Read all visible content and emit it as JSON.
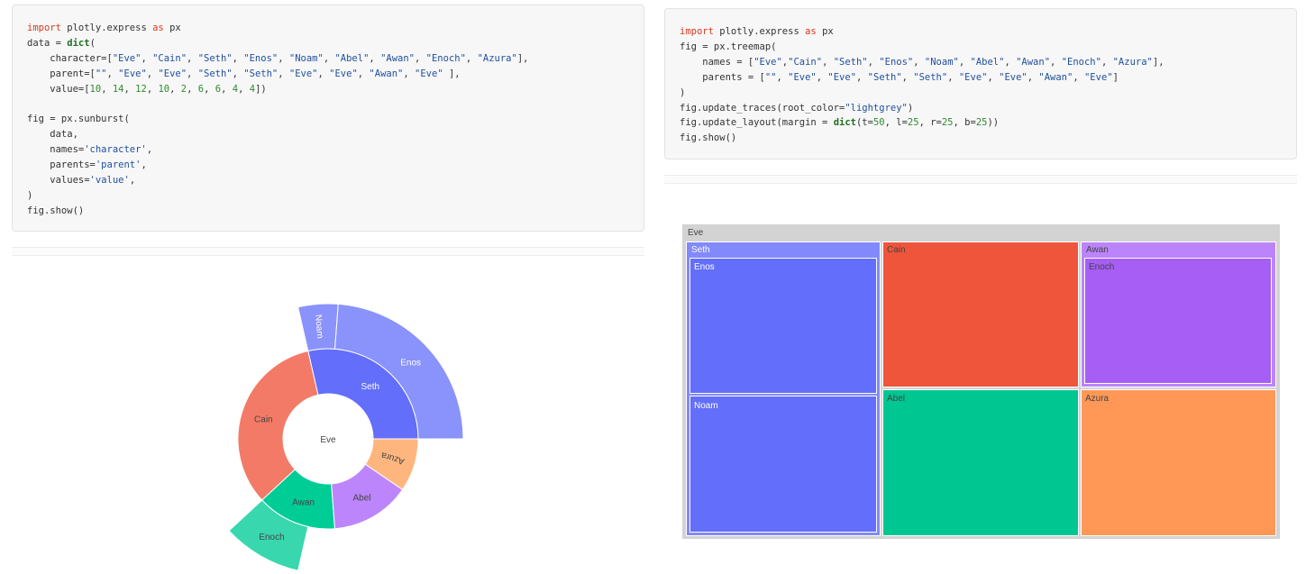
{
  "left_cell": {
    "lines": [
      [
        [
          "kw",
          "import"
        ],
        [
          "t",
          " plotly.express "
        ],
        [
          "kw",
          "as"
        ],
        [
          "t",
          " px"
        ]
      ],
      [
        [
          "t",
          "data = "
        ],
        [
          "fn",
          "dict"
        ],
        [
          "t",
          "("
        ]
      ],
      [
        [
          "t",
          "    character=["
        ],
        [
          "st",
          "\"Eve\""
        ],
        [
          "t",
          ", "
        ],
        [
          "st",
          "\"Cain\""
        ],
        [
          "t",
          ", "
        ],
        [
          "st",
          "\"Seth\""
        ],
        [
          "t",
          ", "
        ],
        [
          "st",
          "\"Enos\""
        ],
        [
          "t",
          ", "
        ],
        [
          "st",
          "\"Noam\""
        ],
        [
          "t",
          ", "
        ],
        [
          "st",
          "\"Abel\""
        ],
        [
          "t",
          ", "
        ],
        [
          "st",
          "\"Awan\""
        ],
        [
          "t",
          ", "
        ],
        [
          "st",
          "\"Enoch\""
        ],
        [
          "t",
          ", "
        ],
        [
          "st",
          "\"Azura\""
        ],
        [
          "t",
          "],"
        ]
      ],
      [
        [
          "t",
          "    parent=["
        ],
        [
          "st",
          "\"\""
        ],
        [
          "t",
          ", "
        ],
        [
          "st",
          "\"Eve\""
        ],
        [
          "t",
          ", "
        ],
        [
          "st",
          "\"Eve\""
        ],
        [
          "t",
          ", "
        ],
        [
          "st",
          "\"Seth\""
        ],
        [
          "t",
          ", "
        ],
        [
          "st",
          "\"Seth\""
        ],
        [
          "t",
          ", "
        ],
        [
          "st",
          "\"Eve\""
        ],
        [
          "t",
          ", "
        ],
        [
          "st",
          "\"Eve\""
        ],
        [
          "t",
          ", "
        ],
        [
          "st",
          "\"Awan\""
        ],
        [
          "t",
          ", "
        ],
        [
          "st",
          "\"Eve\""
        ],
        [
          "t",
          " ],"
        ]
      ],
      [
        [
          "t",
          "    value=["
        ],
        [
          "nm",
          "10"
        ],
        [
          "t",
          ", "
        ],
        [
          "nm",
          "14"
        ],
        [
          "t",
          ", "
        ],
        [
          "nm",
          "12"
        ],
        [
          "t",
          ", "
        ],
        [
          "nm",
          "10"
        ],
        [
          "t",
          ", "
        ],
        [
          "nm",
          "2"
        ],
        [
          "t",
          ", "
        ],
        [
          "nm",
          "6"
        ],
        [
          "t",
          ", "
        ],
        [
          "nm",
          "6"
        ],
        [
          "t",
          ", "
        ],
        [
          "nm",
          "4"
        ],
        [
          "t",
          ", "
        ],
        [
          "nm",
          "4"
        ],
        [
          "t",
          "])"
        ]
      ],
      [
        [
          "t",
          ""
        ]
      ],
      [
        [
          "t",
          "fig = px.sunburst("
        ]
      ],
      [
        [
          "t",
          "    data,"
        ]
      ],
      [
        [
          "t",
          "    names="
        ],
        [
          "st",
          "'character'"
        ],
        [
          "t",
          ","
        ]
      ],
      [
        [
          "t",
          "    parents="
        ],
        [
          "st",
          "'parent'"
        ],
        [
          "t",
          ","
        ]
      ],
      [
        [
          "t",
          "    values="
        ],
        [
          "st",
          "'value'"
        ],
        [
          "t",
          ","
        ]
      ],
      [
        [
          "t",
          ")"
        ]
      ],
      [
        [
          "t",
          "fig.show()"
        ]
      ]
    ]
  },
  "right_cell": {
    "lines": [
      [
        [
          "kw",
          "import"
        ],
        [
          "t",
          " plotly.express "
        ],
        [
          "kw",
          "as"
        ],
        [
          "t",
          " px"
        ]
      ],
      [
        [
          "t",
          "fig = px.treemap("
        ]
      ],
      [
        [
          "t",
          "    names = ["
        ],
        [
          "st",
          "\"Eve\""
        ],
        [
          "t",
          ","
        ],
        [
          "st",
          "\"Cain\""
        ],
        [
          "t",
          ", "
        ],
        [
          "st",
          "\"Seth\""
        ],
        [
          "t",
          ", "
        ],
        [
          "st",
          "\"Enos\""
        ],
        [
          "t",
          ", "
        ],
        [
          "st",
          "\"Noam\""
        ],
        [
          "t",
          ", "
        ],
        [
          "st",
          "\"Abel\""
        ],
        [
          "t",
          ", "
        ],
        [
          "st",
          "\"Awan\""
        ],
        [
          "t",
          ", "
        ],
        [
          "st",
          "\"Enoch\""
        ],
        [
          "t",
          ", "
        ],
        [
          "st",
          "\"Azura\""
        ],
        [
          "t",
          "],"
        ]
      ],
      [
        [
          "t",
          "    parents = ["
        ],
        [
          "st",
          "\"\""
        ],
        [
          "t",
          ", "
        ],
        [
          "st",
          "\"Eve\""
        ],
        [
          "t",
          ", "
        ],
        [
          "st",
          "\"Eve\""
        ],
        [
          "t",
          ", "
        ],
        [
          "st",
          "\"Seth\""
        ],
        [
          "t",
          ", "
        ],
        [
          "st",
          "\"Seth\""
        ],
        [
          "t",
          ", "
        ],
        [
          "st",
          "\"Eve\""
        ],
        [
          "t",
          ", "
        ],
        [
          "st",
          "\"Eve\""
        ],
        [
          "t",
          ", "
        ],
        [
          "st",
          "\"Awan\""
        ],
        [
          "t",
          ", "
        ],
        [
          "st",
          "\"Eve\""
        ],
        [
          "t",
          "]"
        ]
      ],
      [
        [
          "t",
          ")"
        ]
      ],
      [
        [
          "t",
          "fig.update_traces(root_color="
        ],
        [
          "st",
          "\"lightgrey\""
        ],
        [
          "t",
          ")"
        ]
      ],
      [
        [
          "t",
          "fig.update_layout(margin = "
        ],
        [
          "fn",
          "dict"
        ],
        [
          "t",
          "(t="
        ],
        [
          "nm",
          "50"
        ],
        [
          "t",
          ", l="
        ],
        [
          "nm",
          "25"
        ],
        [
          "t",
          ", r="
        ],
        [
          "nm",
          "25"
        ],
        [
          "t",
          ", b="
        ],
        [
          "nm",
          "25"
        ],
        [
          "t",
          "))"
        ]
      ],
      [
        [
          "t",
          "fig.show()"
        ]
      ]
    ]
  },
  "sunburst": {
    "center_label": "Eve",
    "nodes": [
      {
        "name": "Seth",
        "ring": 1,
        "start": 0,
        "end": 12,
        "color": "#636efa",
        "label_color": "#ffffff"
      },
      {
        "name": "Cain",
        "ring": 1,
        "start": 12,
        "end": 26,
        "color": "#ef553b",
        "label_color": "#444444",
        "opacity": 0.78
      },
      {
        "name": "Awan",
        "ring": 1,
        "start": 26,
        "end": 32,
        "color": "#00cc96",
        "label_color": "#444444"
      },
      {
        "name": "Abel",
        "ring": 1,
        "start": 32,
        "end": 38,
        "color": "#ab63fa",
        "label_color": "#444444",
        "opacity": 0.78
      },
      {
        "name": "Azura",
        "ring": 1,
        "start": 38,
        "end": 42,
        "color": "#ffa15a",
        "label_color": "#444444",
        "opacity": 0.78,
        "radial": true
      },
      {
        "name": "Enos",
        "ring": 2,
        "start": 0,
        "end": 10,
        "color": "#636efa",
        "label_color": "#ffffff",
        "opacity": 0.75
      },
      {
        "name": "Noam",
        "ring": 2,
        "start": 10,
        "end": 12,
        "color": "#636efa",
        "label_color": "#ffffff",
        "opacity": 0.75,
        "radial": true
      },
      {
        "name": "Enoch",
        "ring": 2,
        "start": 26,
        "end": 30,
        "color": "#00cc96",
        "label_color": "#444444",
        "opacity": 0.78
      }
    ],
    "total": 42
  },
  "treemap": {
    "root": {
      "name": "Eve",
      "color": "#d3d3d3"
    },
    "groups": [
      {
        "name": "Seth",
        "color": "#636efa",
        "children": [
          "Enos",
          "Noam"
        ]
      },
      {
        "name": "Cain",
        "color": "#ef553b",
        "children": []
      },
      {
        "name": "Awan",
        "color": "#ab63fa",
        "children": [
          "Enoch"
        ]
      },
      {
        "name": "Abel",
        "color": "#00cc96",
        "children": []
      },
      {
        "name": "Azura",
        "color": "#ffa15a",
        "children": []
      }
    ]
  }
}
